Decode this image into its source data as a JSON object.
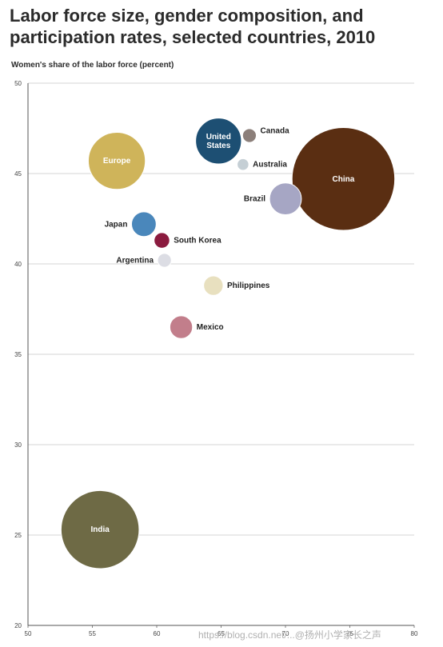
{
  "chart_data": {
    "type": "scatter",
    "title": "Labor force size, gender composition, and participation rates, selected countries, 2010",
    "ylabel": "Women's share of the labor force (percent)",
    "xlabel": "",
    "xlim": [
      50,
      80
    ],
    "ylim": [
      20,
      50
    ],
    "xticks": [
      "50",
      "55",
      "60",
      "65",
      "70",
      "75",
      "80"
    ],
    "yticks": [
      "20",
      "25",
      "30",
      "35",
      "40",
      "45",
      "50"
    ],
    "grid": true,
    "points": [
      {
        "label": "China",
        "x": 74.5,
        "y": 44.7,
        "size": 780,
        "color": "#5a2e12",
        "label_inside": true
      },
      {
        "label": "India",
        "x": 55.6,
        "y": 25.3,
        "size": 450,
        "color": "#6e6a45",
        "label_inside": true
      },
      {
        "label": "Europe",
        "x": 56.9,
        "y": 45.7,
        "size": 240,
        "color": "#cfb45a",
        "label_inside": true
      },
      {
        "label": "United States",
        "x": 64.8,
        "y": 46.8,
        "size": 155,
        "color": "#1d4f73",
        "label_inside": true
      },
      {
        "label": "Brazil",
        "x": 70.0,
        "y": 43.6,
        "size": 75,
        "color": "#a6a6c4",
        "label_inside": false
      },
      {
        "label": "Japan",
        "x": 59.0,
        "y": 42.2,
        "size": 45,
        "color": "#4a87bb",
        "label_inside": false
      },
      {
        "label": "South Korea",
        "x": 60.4,
        "y": 41.3,
        "size": 18,
        "color": "#8b1b3f",
        "label_inside": false
      },
      {
        "label": "Argentina",
        "x": 60.6,
        "y": 40.2,
        "size": 14,
        "color": "#dcdde4",
        "label_inside": false
      },
      {
        "label": "Philippines",
        "x": 64.4,
        "y": 38.8,
        "size": 28,
        "color": "#e8e0bf",
        "label_inside": false
      },
      {
        "label": "Mexico",
        "x": 61.9,
        "y": 36.5,
        "size": 38,
        "color": "#c27e8b",
        "label_inside": false
      },
      {
        "label": "Canada",
        "x": 67.2,
        "y": 47.1,
        "size": 14,
        "color": "#8c7f7a",
        "label_inside": false
      },
      {
        "label": "Australia",
        "x": 66.7,
        "y": 45.5,
        "size": 10,
        "color": "#c5cfd5",
        "label_inside": false
      }
    ]
  },
  "watermark": "https://blog.csdn.net/...@扬州小学家长之声"
}
